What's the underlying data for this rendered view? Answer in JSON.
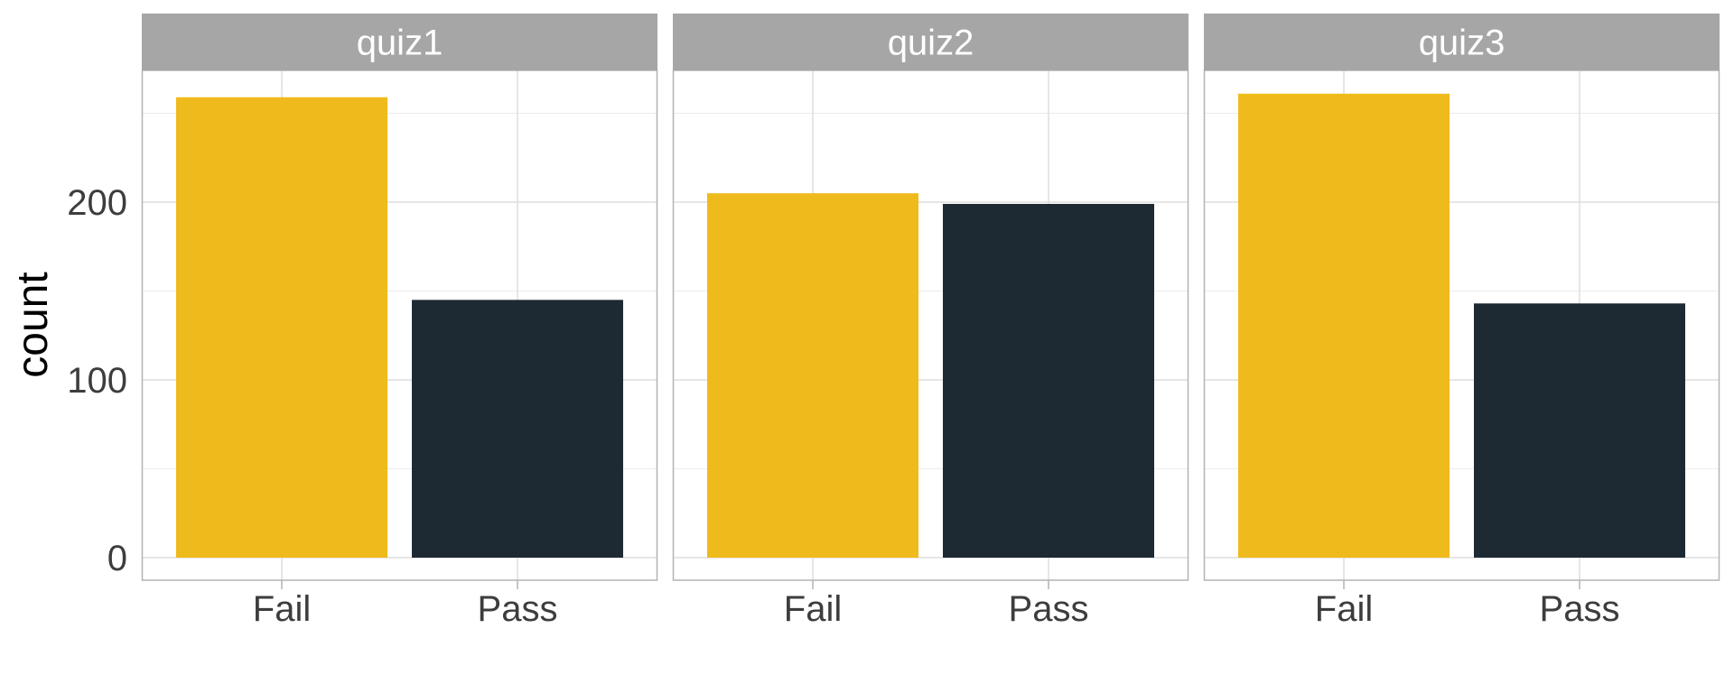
{
  "chart_data": {
    "type": "bar",
    "facet_by": "quiz",
    "categories": [
      "Fail",
      "Pass"
    ],
    "ylabel": "count",
    "xlabel": "",
    "ylim": [
      0,
      280
    ],
    "yticks": [
      0,
      100,
      200
    ],
    "grid": true,
    "legend": "none",
    "colors": {
      "Fail": "#EFBA1C",
      "Pass": "#1E2A33",
      "strip": "#A6A6A6"
    },
    "panels": [
      {
        "label": "quiz1",
        "values": [
          259,
          145
        ]
      },
      {
        "label": "quiz2",
        "values": [
          205,
          199
        ]
      },
      {
        "label": "quiz3",
        "values": [
          261,
          143
        ]
      }
    ]
  }
}
